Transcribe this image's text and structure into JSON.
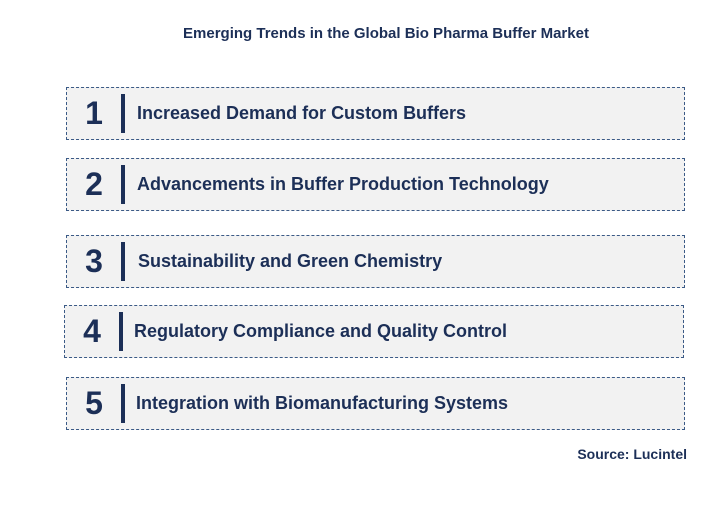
{
  "title": "Emerging Trends in the Global Bio Pharma Buffer Market",
  "trends": [
    {
      "number": "1",
      "label": "Increased Demand for Custom Buffers"
    },
    {
      "number": "2",
      "label": "Advancements in Buffer Production Technology"
    },
    {
      "number": "3",
      "label": "Sustainability and Green Chemistry"
    },
    {
      "number": "4",
      "label": "Regulatory Compliance and Quality Control"
    },
    {
      "number": "5",
      "label": "Integration with Biomanufacturing Systems"
    }
  ],
  "source": "Source: Lucintel"
}
